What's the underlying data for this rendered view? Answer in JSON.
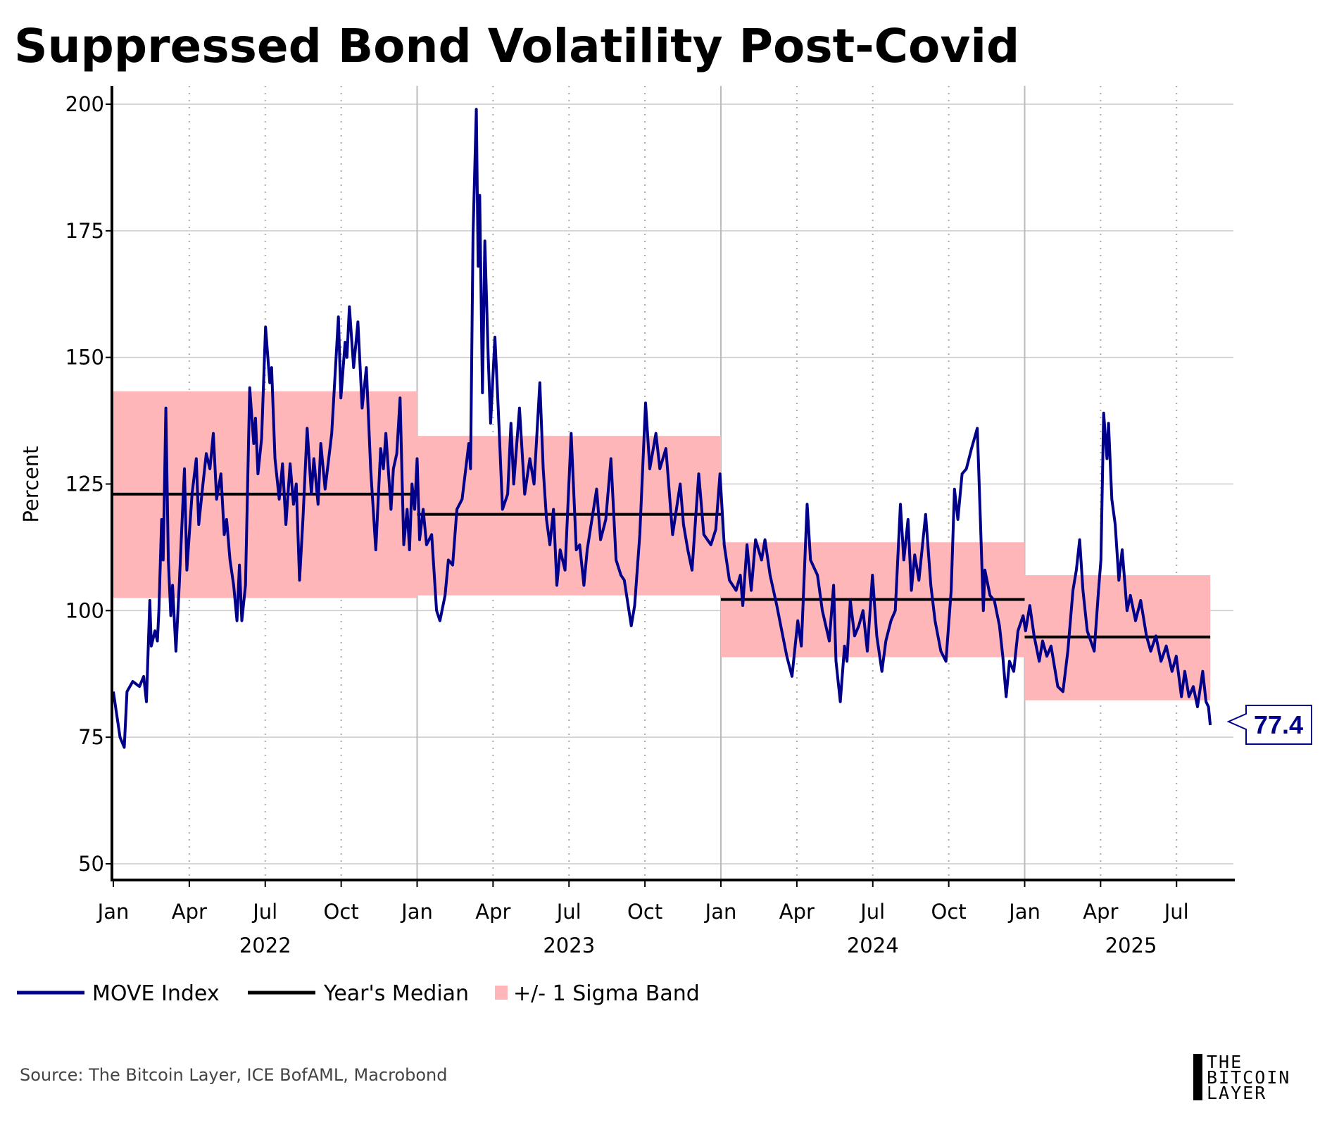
{
  "chart_data": {
    "type": "line",
    "title": "Suppressed Bond Volatility Post-Covid",
    "ylabel": "Percent",
    "xlabel": "",
    "ylim": [
      50,
      200
    ],
    "yticks": [
      50,
      75,
      100,
      125,
      150,
      175,
      200
    ],
    "xlim": [
      2022.0,
      2025.69
    ],
    "grid": true,
    "month_ticks": [
      {
        "x": 2022.0,
        "label": "Jan"
      },
      {
        "x": 2022.25,
        "label": "Apr"
      },
      {
        "x": 2022.5,
        "label": "Jul"
      },
      {
        "x": 2022.75,
        "label": "Oct"
      },
      {
        "x": 2023.0,
        "label": "Jan"
      },
      {
        "x": 2023.25,
        "label": "Apr"
      },
      {
        "x": 2023.5,
        "label": "Jul"
      },
      {
        "x": 2023.75,
        "label": "Oct"
      },
      {
        "x": 2024.0,
        "label": "Jan"
      },
      {
        "x": 2024.25,
        "label": "Apr"
      },
      {
        "x": 2024.5,
        "label": "Jul"
      },
      {
        "x": 2024.75,
        "label": "Oct"
      },
      {
        "x": 2025.0,
        "label": "Jan"
      },
      {
        "x": 2025.25,
        "label": "Apr"
      },
      {
        "x": 2025.5,
        "label": "Jul"
      }
    ],
    "year_labels": [
      {
        "x": 2022.5,
        "label": "2022"
      },
      {
        "x": 2023.5,
        "label": "2023"
      },
      {
        "x": 2024.5,
        "label": "2024"
      },
      {
        "x": 2025.35,
        "label": "2025"
      }
    ],
    "legend": [
      "MOVE Index",
      "Year's Median",
      "+/- 1 Sigma Band"
    ],
    "legend_position": "bottom-left",
    "colors": {
      "move": "#00008b",
      "median": "#000000",
      "band": "#ffb6b8"
    },
    "last_value_label": "77.4",
    "yearly_stats": [
      {
        "year": 2022,
        "start": 2022.0,
        "end": 2023.0,
        "median": 123,
        "lower": 102.5,
        "upper": 143.3
      },
      {
        "year": 2023,
        "start": 2023.0,
        "end": 2024.0,
        "median": 119,
        "lower": 103,
        "upper": 134.5
      },
      {
        "year": 2024,
        "start": 2024.0,
        "end": 2025.0,
        "median": 102.2,
        "lower": 90.8,
        "upper": 113.5
      },
      {
        "year": 2025,
        "start": 2025.0,
        "end": 2025.611,
        "median": 94.8,
        "lower": 82.3,
        "upper": 107
      }
    ],
    "series": [
      {
        "name": "MOVE Index",
        "points": [
          [
            2022.0,
            84
          ],
          [
            2022.022,
            75
          ],
          [
            2022.036,
            73
          ],
          [
            2022.045,
            84
          ],
          [
            2022.064,
            86
          ],
          [
            2022.086,
            85
          ],
          [
            2022.1,
            87
          ],
          [
            2022.109,
            82
          ],
          [
            2022.12,
            102
          ],
          [
            2022.125,
            93
          ],
          [
            2022.137,
            96
          ],
          [
            2022.145,
            94
          ],
          [
            2022.15,
            100
          ],
          [
            2022.159,
            118
          ],
          [
            2022.164,
            110
          ],
          [
            2022.173,
            140
          ],
          [
            2022.181,
            110
          ],
          [
            2022.189,
            99
          ],
          [
            2022.195,
            105
          ],
          [
            2022.206,
            92
          ],
          [
            2022.217,
            105
          ],
          [
            2022.228,
            120
          ],
          [
            2022.234,
            128
          ],
          [
            2022.242,
            108
          ],
          [
            2022.259,
            123
          ],
          [
            2022.273,
            130
          ],
          [
            2022.281,
            117
          ],
          [
            2022.295,
            125
          ],
          [
            2022.306,
            131
          ],
          [
            2022.318,
            128
          ],
          [
            2022.329,
            135
          ],
          [
            2022.34,
            122
          ],
          [
            2022.354,
            127
          ],
          [
            2022.365,
            115
          ],
          [
            2022.373,
            118
          ],
          [
            2022.384,
            110
          ],
          [
            2022.396,
            105
          ],
          [
            2022.407,
            98
          ],
          [
            2022.415,
            109
          ],
          [
            2022.423,
            98
          ],
          [
            2022.435,
            105
          ],
          [
            2022.449,
            144
          ],
          [
            2022.462,
            133
          ],
          [
            2022.468,
            138
          ],
          [
            2022.476,
            127
          ],
          [
            2022.488,
            134
          ],
          [
            2022.501,
            156
          ],
          [
            2022.515,
            145
          ],
          [
            2022.521,
            148
          ],
          [
            2022.532,
            130
          ],
          [
            2022.546,
            122
          ],
          [
            2022.557,
            129
          ],
          [
            2022.568,
            117
          ],
          [
            2022.582,
            129
          ],
          [
            2022.593,
            121
          ],
          [
            2022.602,
            125
          ],
          [
            2022.613,
            106
          ],
          [
            2022.624,
            118
          ],
          [
            2022.638,
            136
          ],
          [
            2022.652,
            123
          ],
          [
            2022.66,
            130
          ],
          [
            2022.674,
            121
          ],
          [
            2022.683,
            133
          ],
          [
            2022.697,
            124
          ],
          [
            2022.719,
            135
          ],
          [
            2022.741,
            158
          ],
          [
            2022.749,
            142
          ],
          [
            2022.763,
            153
          ],
          [
            2022.769,
            150
          ],
          [
            2022.777,
            160
          ],
          [
            2022.791,
            148
          ],
          [
            2022.805,
            157
          ],
          [
            2022.819,
            140
          ],
          [
            2022.833,
            148
          ],
          [
            2022.847,
            128
          ],
          [
            2022.864,
            112
          ],
          [
            2022.88,
            132
          ],
          [
            2022.889,
            128
          ],
          [
            2022.897,
            135
          ],
          [
            2022.914,
            120
          ],
          [
            2022.922,
            128
          ],
          [
            2022.933,
            131
          ],
          [
            2022.944,
            142
          ],
          [
            2022.956,
            113
          ],
          [
            2022.967,
            120
          ],
          [
            2022.975,
            112
          ],
          [
            2022.983,
            125
          ],
          [
            2022.992,
            120
          ],
          [
            2023.0,
            130
          ],
          [
            2023.008,
            114
          ],
          [
            2023.02,
            120
          ],
          [
            2023.031,
            113
          ],
          [
            2023.048,
            115
          ],
          [
            2023.064,
            100
          ],
          [
            2023.075,
            98
          ],
          [
            2023.092,
            103
          ],
          [
            2023.103,
            110
          ],
          [
            2023.117,
            109
          ],
          [
            2023.131,
            120
          ],
          [
            2023.148,
            122
          ],
          [
            2023.17,
            133
          ],
          [
            2023.176,
            128
          ],
          [
            2023.184,
            174
          ],
          [
            2023.195,
            199
          ],
          [
            2023.201,
            168
          ],
          [
            2023.206,
            182
          ],
          [
            2023.215,
            143
          ],
          [
            2023.223,
            173
          ],
          [
            2023.234,
            150
          ],
          [
            2023.242,
            137
          ],
          [
            2023.256,
            154
          ],
          [
            2023.267,
            140
          ],
          [
            2023.281,
            120
          ],
          [
            2023.298,
            123
          ],
          [
            2023.309,
            137
          ],
          [
            2023.318,
            125
          ],
          [
            2023.337,
            140
          ],
          [
            2023.354,
            123
          ],
          [
            2023.371,
            130
          ],
          [
            2023.385,
            125
          ],
          [
            2023.404,
            145
          ],
          [
            2023.415,
            128
          ],
          [
            2023.426,
            118
          ],
          [
            2023.437,
            113
          ],
          [
            2023.449,
            120
          ],
          [
            2023.46,
            105
          ],
          [
            2023.471,
            112
          ],
          [
            2023.487,
            108
          ],
          [
            2023.507,
            135
          ],
          [
            2023.524,
            112
          ],
          [
            2023.535,
            113
          ],
          [
            2023.549,
            105
          ],
          [
            2023.56,
            112
          ],
          [
            2023.591,
            124
          ],
          [
            2023.604,
            114
          ],
          [
            2023.621,
            118
          ],
          [
            2023.638,
            130
          ],
          [
            2023.655,
            110
          ],
          [
            2023.671,
            107
          ],
          [
            2023.682,
            106
          ],
          [
            2023.705,
            97
          ],
          [
            2023.716,
            101
          ],
          [
            2023.733,
            115
          ],
          [
            2023.752,
            141
          ],
          [
            2023.766,
            128
          ],
          [
            2023.786,
            135
          ],
          [
            2023.799,
            128
          ],
          [
            2023.819,
            132
          ],
          [
            2023.841,
            115
          ],
          [
            2023.866,
            125
          ],
          [
            2023.877,
            117
          ],
          [
            2023.891,
            112
          ],
          [
            2023.905,
            108
          ],
          [
            2023.927,
            127
          ],
          [
            2023.944,
            115
          ],
          [
            2023.967,
            113
          ],
          [
            2023.983,
            116
          ],
          [
            2023.997,
            127
          ],
          [
            2024.011,
            113
          ],
          [
            2024.028,
            106
          ],
          [
            2024.05,
            104
          ],
          [
            2024.064,
            107
          ],
          [
            2024.072,
            101
          ],
          [
            2024.086,
            113
          ],
          [
            2024.1,
            104
          ],
          [
            2024.114,
            114
          ],
          [
            2024.134,
            110
          ],
          [
            2024.145,
            114
          ],
          [
            2024.162,
            107
          ],
          [
            2024.184,
            101
          ],
          [
            2024.217,
            91
          ],
          [
            2024.234,
            87
          ],
          [
            2024.253,
            98
          ],
          [
            2024.265,
            93
          ],
          [
            2024.284,
            121
          ],
          [
            2024.295,
            110
          ],
          [
            2024.318,
            107
          ],
          [
            2024.334,
            100
          ],
          [
            2024.357,
            94
          ],
          [
            2024.371,
            105
          ],
          [
            2024.379,
            90
          ],
          [
            2024.393,
            82
          ],
          [
            2024.407,
            93
          ],
          [
            2024.415,
            90
          ],
          [
            2024.426,
            102
          ],
          [
            2024.44,
            95
          ],
          [
            2024.454,
            97
          ],
          [
            2024.468,
            100
          ],
          [
            2024.482,
            92
          ],
          [
            2024.499,
            107
          ],
          [
            2024.513,
            95
          ],
          [
            2024.53,
            88
          ],
          [
            2024.543,
            94
          ],
          [
            2024.56,
            98
          ],
          [
            2024.574,
            100
          ],
          [
            2024.591,
            121
          ],
          [
            2024.602,
            110
          ],
          [
            2024.616,
            118
          ],
          [
            2024.627,
            104
          ],
          [
            2024.638,
            111
          ],
          [
            2024.652,
            106
          ],
          [
            2024.674,
            119
          ],
          [
            2024.691,
            105
          ],
          [
            2024.705,
            98
          ],
          [
            2024.724,
            92
          ],
          [
            2024.741,
            90
          ],
          [
            2024.758,
            104
          ],
          [
            2024.769,
            124
          ],
          [
            2024.78,
            118
          ],
          [
            2024.794,
            127
          ],
          [
            2024.808,
            128
          ],
          [
            2024.825,
            132
          ],
          [
            2024.844,
            136
          ],
          [
            2024.853,
            120
          ],
          [
            2024.864,
            100
          ],
          [
            2024.869,
            108
          ],
          [
            2024.886,
            103
          ],
          [
            2024.9,
            102
          ],
          [
            2024.917,
            97
          ],
          [
            2024.928,
            91
          ],
          [
            2024.939,
            83
          ],
          [
            2024.95,
            90
          ],
          [
            2024.964,
            88
          ],
          [
            2024.978,
            96
          ],
          [
            2024.995,
            99
          ],
          [
            2025.003,
            96
          ],
          [
            2025.017,
            101
          ],
          [
            2025.031,
            95
          ],
          [
            2025.048,
            90
          ],
          [
            2025.059,
            94
          ],
          [
            2025.073,
            91
          ],
          [
            2025.087,
            93
          ],
          [
            2025.109,
            85
          ],
          [
            2025.126,
            84
          ],
          [
            2025.142,
            92
          ],
          [
            2025.159,
            104
          ],
          [
            2025.17,
            108
          ],
          [
            2025.181,
            114
          ],
          [
            2025.192,
            104
          ],
          [
            2025.206,
            96
          ],
          [
            2025.229,
            92
          ],
          [
            2025.243,
            104
          ],
          [
            2025.251,
            110
          ],
          [
            2025.26,
            139
          ],
          [
            2025.271,
            130
          ],
          [
            2025.276,
            137
          ],
          [
            2025.287,
            122
          ],
          [
            2025.298,
            117
          ],
          [
            2025.31,
            106
          ],
          [
            2025.321,
            112
          ],
          [
            2025.337,
            100
          ],
          [
            2025.348,
            103
          ],
          [
            2025.365,
            98
          ],
          [
            2025.382,
            102
          ],
          [
            2025.401,
            95
          ],
          [
            2025.415,
            92
          ],
          [
            2025.432,
            95
          ],
          [
            2025.449,
            90
          ],
          [
            2025.466,
            93
          ],
          [
            2025.485,
            88
          ],
          [
            2025.499,
            91
          ],
          [
            2025.516,
            83
          ],
          [
            2025.527,
            88
          ],
          [
            2025.541,
            83
          ],
          [
            2025.555,
            85
          ],
          [
            2025.569,
            81
          ],
          [
            2025.586,
            88
          ],
          [
            2025.597,
            82
          ],
          [
            2025.605,
            81
          ],
          [
            2025.611,
            77.4
          ]
        ]
      }
    ]
  },
  "footer": {
    "source": "Source: The Bitcoin Layer, ICE BofAML, Macrobond",
    "logo_text": [
      "THE",
      "BITCOIN",
      "LAYER"
    ]
  }
}
